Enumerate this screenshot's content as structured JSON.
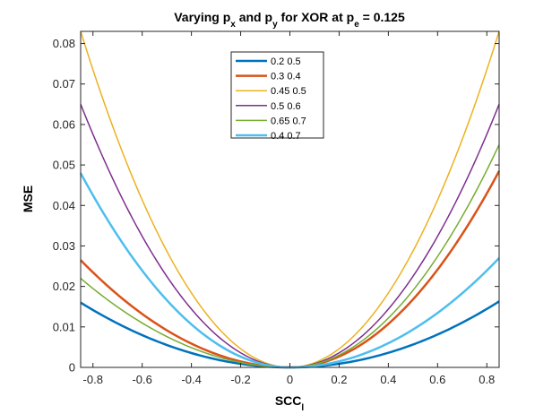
{
  "chart_data": {
    "type": "line",
    "title": {
      "prefix": "Varying p",
      "sub1": "x",
      "mid1": " and p",
      "sub2": "y",
      "mid2": " for XOR at p",
      "sub3": "e",
      "suffix": " = 0.125"
    },
    "xlabel": {
      "main": "SCC",
      "sub": "l"
    },
    "ylabel": "MSE",
    "xlim": [
      -0.85,
      0.85
    ],
    "ylim": [
      0,
      0.083
    ],
    "xticks": [
      -0.8,
      -0.6,
      -0.4,
      -0.2,
      0,
      0.2,
      0.4,
      0.6,
      0.8
    ],
    "xtick_labels": [
      "-0.8",
      "-0.6",
      "-0.4",
      "-0.2",
      "0",
      "0.2",
      "0.4",
      "0.6",
      "0.8"
    ],
    "yticks": [
      0,
      0.01,
      0.02,
      0.03,
      0.04,
      0.05,
      0.06,
      0.07,
      0.08
    ],
    "ytick_labels": [
      "0",
      "0.01",
      "0.02",
      "0.03",
      "0.04",
      "0.05",
      "0.06",
      "0.07",
      "0.08"
    ],
    "grid": false,
    "legend_position": "top-center",
    "series": [
      {
        "name": "0.2  0.5",
        "color": "#0072BD",
        "width": 2.5,
        "left_end": 0.016,
        "right_end": 0.0163
      },
      {
        "name": "0.3 0.4",
        "color": "#D95319",
        "width": 2.5,
        "left_end": 0.0265,
        "right_end": 0.0485
      },
      {
        "name": "0.45 0.5",
        "color": "#EDB120",
        "width": 1.5,
        "left_end": 0.083,
        "right_end": 0.083
      },
      {
        "name": "0.5 0.6",
        "color": "#7E2F8E",
        "width": 1.5,
        "left_end": 0.065,
        "right_end": 0.065
      },
      {
        "name": "0.65 0.7",
        "color": "#77AC30",
        "width": 1.5,
        "left_end": 0.022,
        "right_end": 0.055
      },
      {
        "name": "0.4 0.7",
        "color": "#4DBEEE",
        "width": 2.5,
        "left_end": 0.048,
        "right_end": 0.027
      }
    ]
  }
}
